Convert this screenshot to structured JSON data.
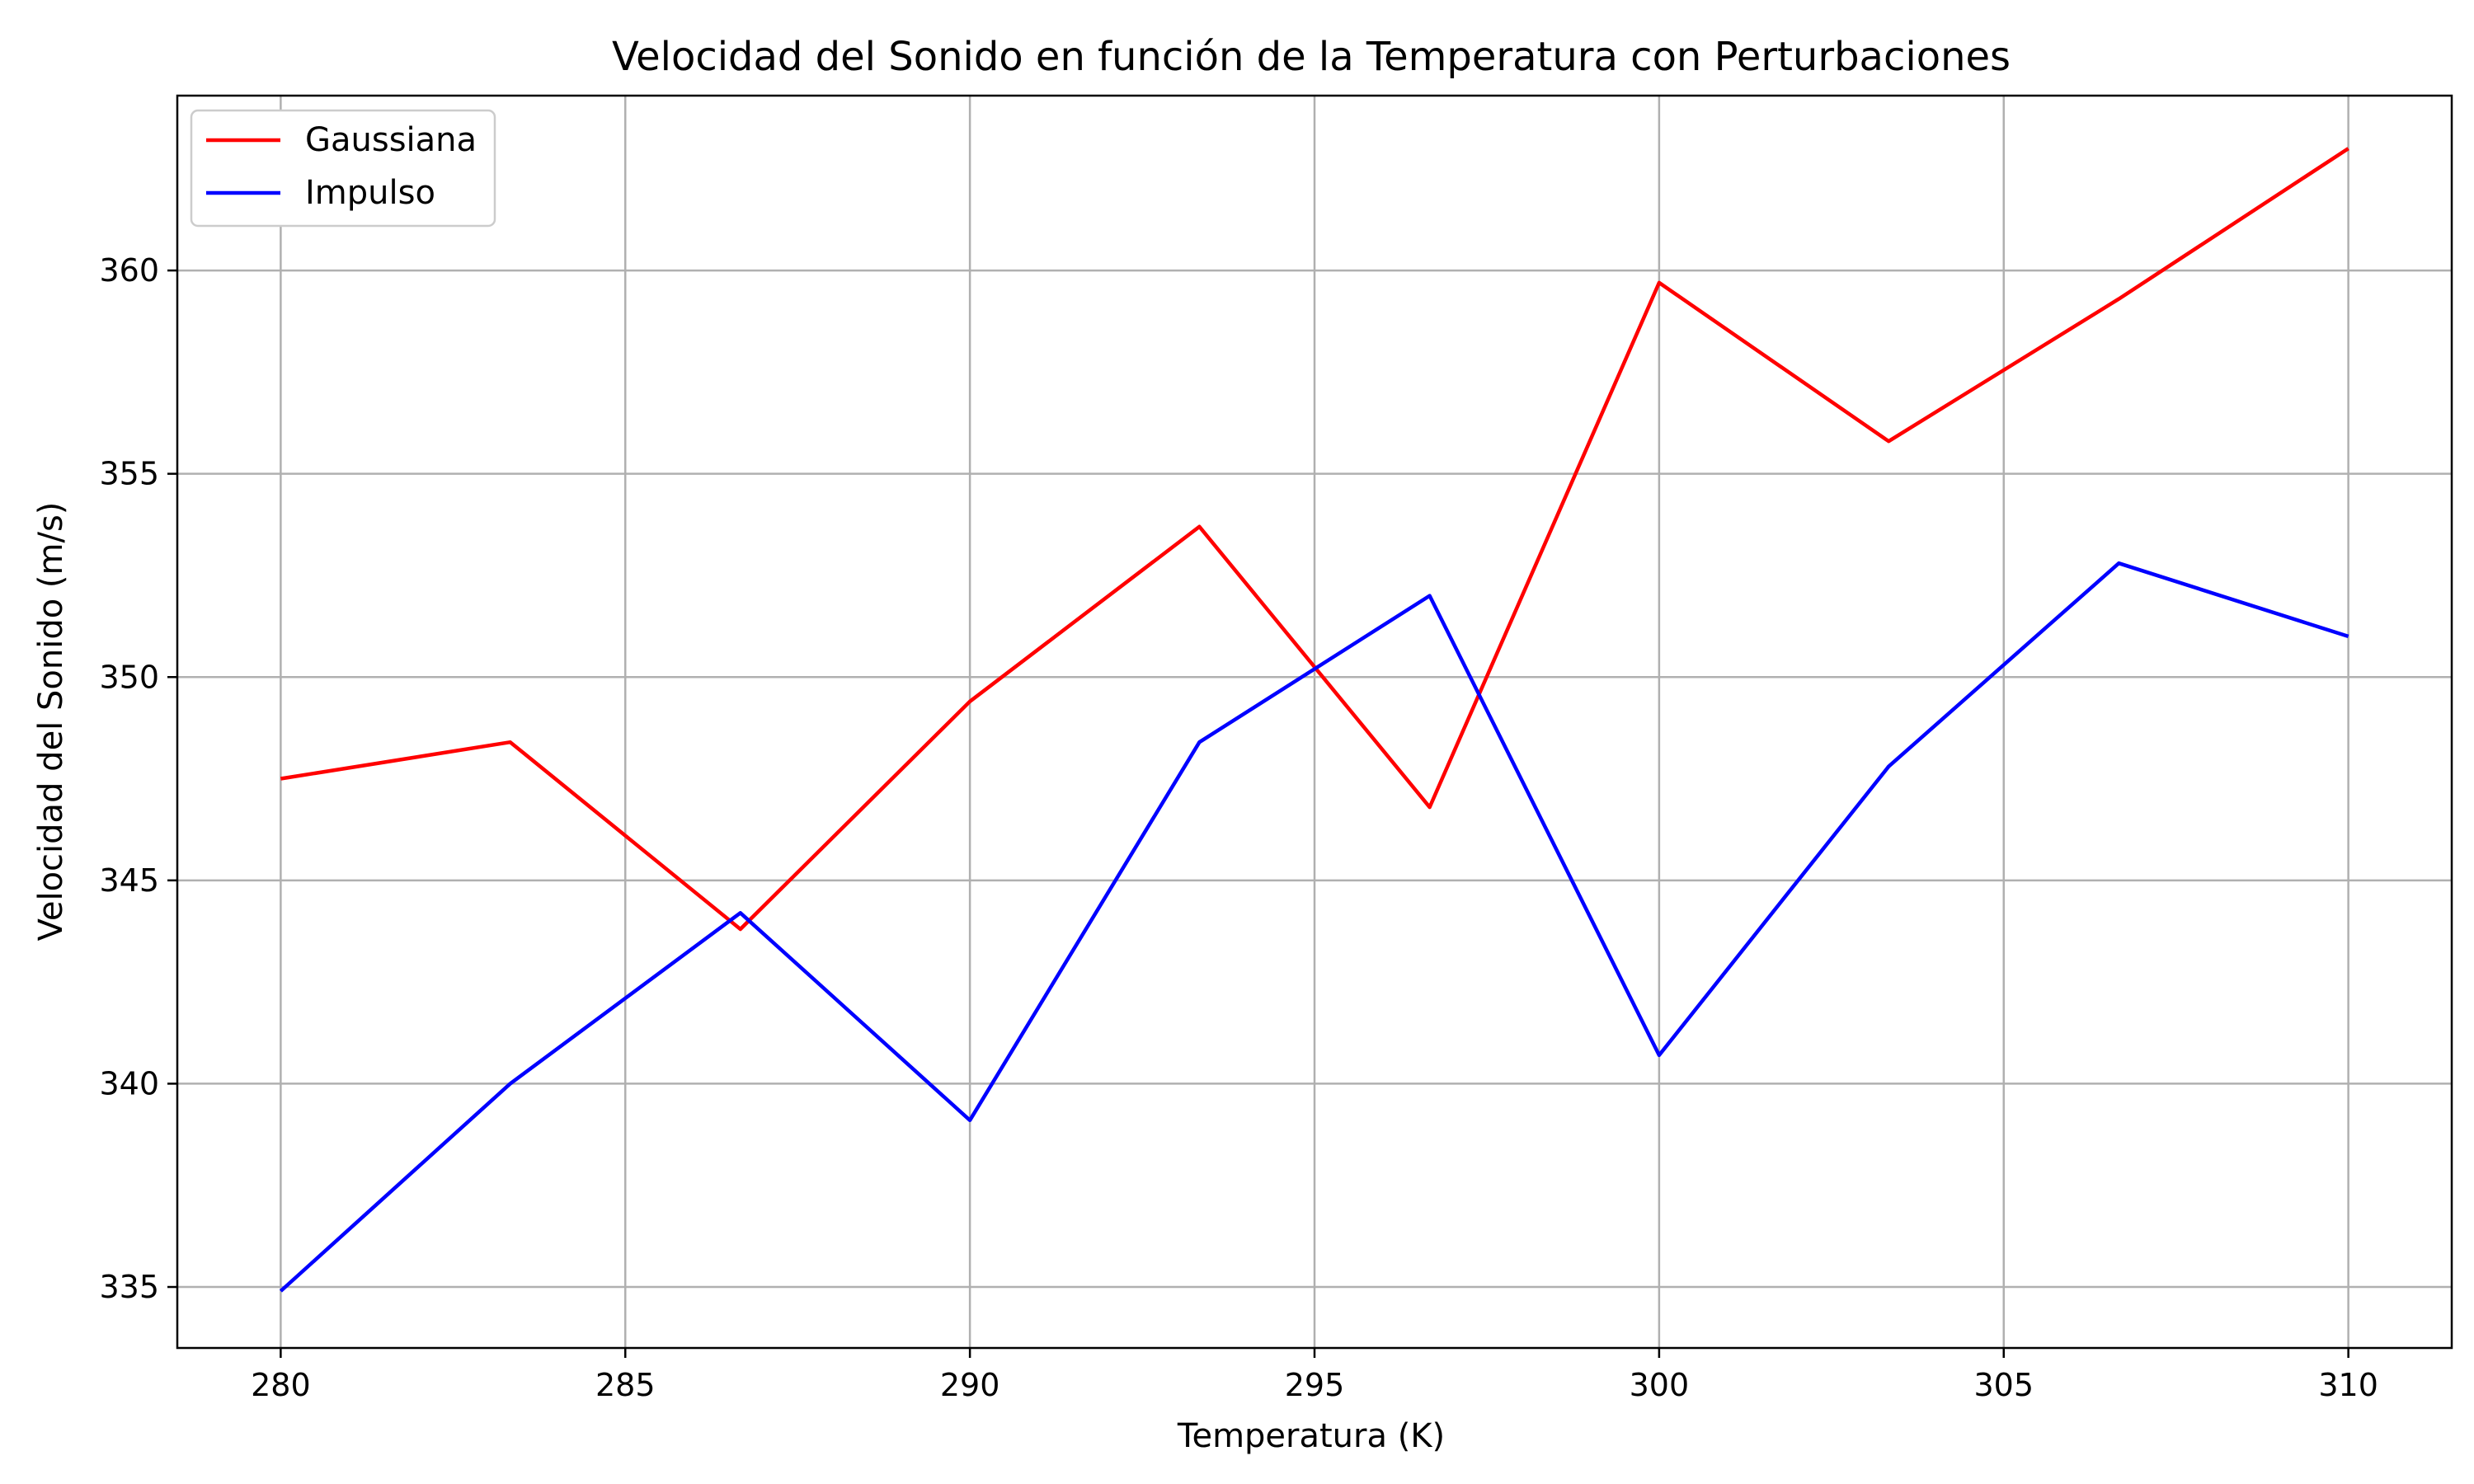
{
  "chart_data": {
    "type": "line",
    "title": "Velocidad del Sonido en función de la Temperatura con Perturbaciones",
    "xlabel": "Temperatura (K)",
    "ylabel": "Velocidad del Sonido (m/s)",
    "xlim": [
      278.5,
      311.5
    ],
    "ylim": [
      333.5,
      364.3
    ],
    "xticks": [
      280,
      285,
      290,
      295,
      300,
      305,
      310
    ],
    "yticks": [
      335,
      340,
      345,
      350,
      355,
      360
    ],
    "grid": true,
    "legend_position": "top-left",
    "x": [
      280,
      283.33,
      286.67,
      290,
      293.33,
      296.67,
      300,
      303.33,
      306.67,
      310
    ],
    "series": [
      {
        "name": "Gaussiana",
        "color": "#ff0000",
        "values": [
          347.5,
          348.4,
          343.8,
          349.4,
          353.7,
          346.8,
          359.7,
          355.8,
          359.3,
          363.0
        ]
      },
      {
        "name": "Impulso",
        "color": "#0000ff",
        "values": [
          334.9,
          340.0,
          344.2,
          339.1,
          348.4,
          352.0,
          340.7,
          347.8,
          352.8,
          351.0
        ]
      }
    ]
  }
}
